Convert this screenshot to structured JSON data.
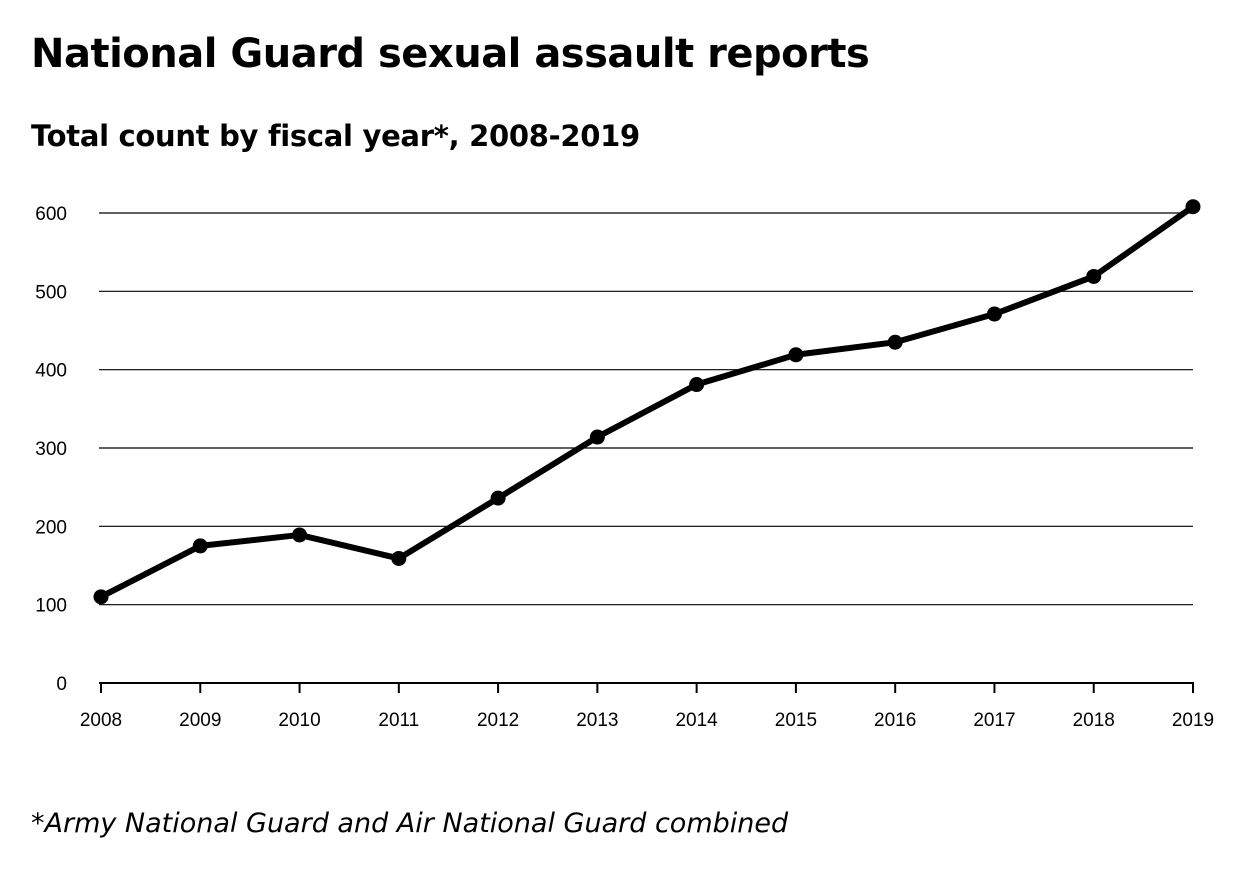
{
  "title": "National Guard sexual assault reports",
  "subtitle": "Total count by fiscal year*, 2008-2019",
  "footnote": "*Army National Guard and Air National Guard combined",
  "chart_data": {
    "type": "line",
    "x": [
      "2008",
      "2009",
      "2010",
      "2011",
      "2012",
      "2013",
      "2014",
      "2015",
      "2016",
      "2017",
      "2018",
      "2019"
    ],
    "series": [
      {
        "values": [
          110,
          175,
          189,
          159,
          236,
          314,
          381,
          419,
          435,
          471,
          519,
          608
        ]
      }
    ],
    "yticks": [
      0,
      100,
      200,
      300,
      400,
      500,
      600
    ],
    "ylim": [
      0,
      600
    ],
    "grid": true,
    "legend": "none",
    "line_color": "#000000",
    "marker": "filled-circle"
  }
}
